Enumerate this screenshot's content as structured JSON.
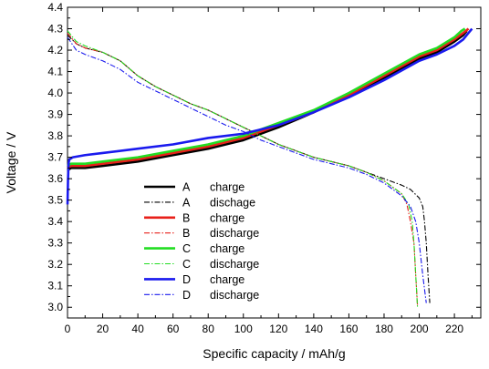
{
  "chart_data": {
    "type": "line",
    "title": "",
    "xlabel": "Specific capacity / mAh/g",
    "ylabel": "Voltage / V",
    "xlim": [
      0,
      235
    ],
    "ylim": [
      2.95,
      4.4
    ],
    "x_ticks": [
      0,
      20,
      40,
      60,
      80,
      100,
      120,
      140,
      160,
      180,
      200,
      220
    ],
    "y_ticks": [
      3.0,
      3.1,
      3.2,
      3.3,
      3.4,
      3.5,
      3.6,
      3.7,
      3.8,
      3.9,
      4.0,
      4.1,
      4.2,
      4.3,
      4.4
    ],
    "grid": false,
    "legend_position": "center-left",
    "series": [
      {
        "sample": "A",
        "mode": "charge",
        "color": "#000000",
        "style": "solid",
        "points": [
          [
            0,
            3.64
          ],
          [
            2,
            3.65
          ],
          [
            10,
            3.65
          ],
          [
            20,
            3.66
          ],
          [
            40,
            3.68
          ],
          [
            60,
            3.71
          ],
          [
            80,
            3.74
          ],
          [
            100,
            3.78
          ],
          [
            120,
            3.84
          ],
          [
            140,
            3.91
          ],
          [
            160,
            3.99
          ],
          [
            180,
            4.07
          ],
          [
            200,
            4.16
          ],
          [
            210,
            4.19
          ],
          [
            220,
            4.24
          ],
          [
            225,
            4.27
          ],
          [
            227,
            4.29
          ]
        ]
      },
      {
        "sample": "A",
        "mode": "dischage",
        "color": "#000000",
        "style": "dashdot",
        "points": [
          [
            0,
            4.27
          ],
          [
            5,
            4.23
          ],
          [
            10,
            4.21
          ],
          [
            20,
            4.19
          ],
          [
            30,
            4.15
          ],
          [
            40,
            4.08
          ],
          [
            50,
            4.03
          ],
          [
            60,
            3.99
          ],
          [
            70,
            3.95
          ],
          [
            80,
            3.92
          ],
          [
            90,
            3.88
          ],
          [
            100,
            3.84
          ],
          [
            110,
            3.8
          ],
          [
            120,
            3.76
          ],
          [
            130,
            3.73
          ],
          [
            140,
            3.7
          ],
          [
            150,
            3.68
          ],
          [
            160,
            3.66
          ],
          [
            170,
            3.63
          ],
          [
            180,
            3.6
          ],
          [
            190,
            3.57
          ],
          [
            195,
            3.55
          ],
          [
            200,
            3.51
          ],
          [
            202,
            3.47
          ],
          [
            203,
            3.4
          ],
          [
            204,
            3.3
          ],
          [
            205,
            3.15
          ],
          [
            206,
            3.02
          ]
        ]
      },
      {
        "sample": "B",
        "mode": "charge",
        "color": "#e8201a",
        "style": "solid",
        "points": [
          [
            0,
            3.65
          ],
          [
            2,
            3.66
          ],
          [
            10,
            3.66
          ],
          [
            20,
            3.67
          ],
          [
            40,
            3.69
          ],
          [
            60,
            3.72
          ],
          [
            80,
            3.75
          ],
          [
            100,
            3.79
          ],
          [
            120,
            3.85
          ],
          [
            140,
            3.91
          ],
          [
            160,
            3.99
          ],
          [
            180,
            4.08
          ],
          [
            200,
            4.17
          ],
          [
            210,
            4.2
          ],
          [
            220,
            4.25
          ],
          [
            225,
            4.28
          ],
          [
            228,
            4.3
          ]
        ]
      },
      {
        "sample": "B",
        "mode": "discharge",
        "color": "#e8201a",
        "style": "dashdot",
        "points": [
          [
            0,
            4.28
          ],
          [
            5,
            4.23
          ],
          [
            10,
            4.21
          ],
          [
            20,
            4.19
          ],
          [
            30,
            4.15
          ],
          [
            40,
            4.08
          ],
          [
            50,
            4.03
          ],
          [
            60,
            3.99
          ],
          [
            70,
            3.95
          ],
          [
            80,
            3.92
          ],
          [
            90,
            3.88
          ],
          [
            100,
            3.84
          ],
          [
            110,
            3.8
          ],
          [
            120,
            3.76
          ],
          [
            130,
            3.73
          ],
          [
            140,
            3.7
          ],
          [
            150,
            3.68
          ],
          [
            160,
            3.66
          ],
          [
            170,
            3.63
          ],
          [
            180,
            3.59
          ],
          [
            190,
            3.53
          ],
          [
            193,
            3.48
          ],
          [
            195,
            3.4
          ],
          [
            197,
            3.3
          ],
          [
            198,
            3.15
          ],
          [
            199,
            3.01
          ]
        ]
      },
      {
        "sample": "C",
        "mode": "charge",
        "color": "#22dd22",
        "style": "solid",
        "points": [
          [
            0,
            3.66
          ],
          [
            2,
            3.67
          ],
          [
            10,
            3.67
          ],
          [
            20,
            3.68
          ],
          [
            40,
            3.7
          ],
          [
            60,
            3.73
          ],
          [
            80,
            3.76
          ],
          [
            100,
            3.8
          ],
          [
            120,
            3.86
          ],
          [
            140,
            3.92
          ],
          [
            160,
            4.0
          ],
          [
            180,
            4.09
          ],
          [
            200,
            4.18
          ],
          [
            210,
            4.21
          ],
          [
            220,
            4.26
          ],
          [
            224,
            4.29
          ],
          [
            226,
            4.3
          ]
        ]
      },
      {
        "sample": "C",
        "mode": "discharge",
        "color": "#22dd22",
        "style": "dashdot",
        "points": [
          [
            0,
            4.29
          ],
          [
            5,
            4.24
          ],
          [
            10,
            4.22
          ],
          [
            20,
            4.19
          ],
          [
            30,
            4.15
          ],
          [
            40,
            4.08
          ],
          [
            50,
            4.03
          ],
          [
            60,
            3.99
          ],
          [
            70,
            3.95
          ],
          [
            80,
            3.92
          ],
          [
            90,
            3.88
          ],
          [
            100,
            3.84
          ],
          [
            110,
            3.8
          ],
          [
            120,
            3.76
          ],
          [
            130,
            3.73
          ],
          [
            140,
            3.7
          ],
          [
            150,
            3.68
          ],
          [
            160,
            3.66
          ],
          [
            170,
            3.63
          ],
          [
            180,
            3.59
          ],
          [
            190,
            3.53
          ],
          [
            194,
            3.48
          ],
          [
            196,
            3.4
          ],
          [
            197,
            3.3
          ],
          [
            198,
            3.15
          ],
          [
            199,
            3.0
          ]
        ]
      },
      {
        "sample": "D",
        "mode": "charge",
        "color": "#1a1aee",
        "style": "solid",
        "points": [
          [
            0,
            3.48
          ],
          [
            0.3,
            3.6
          ],
          [
            0.6,
            3.67
          ],
          [
            1,
            3.69
          ],
          [
            3,
            3.7
          ],
          [
            10,
            3.71
          ],
          [
            20,
            3.72
          ],
          [
            40,
            3.74
          ],
          [
            60,
            3.76
          ],
          [
            80,
            3.79
          ],
          [
            100,
            3.81
          ],
          [
            120,
            3.85
          ],
          [
            140,
            3.91
          ],
          [
            160,
            3.98
          ],
          [
            180,
            4.06
          ],
          [
            200,
            4.15
          ],
          [
            210,
            4.18
          ],
          [
            220,
            4.22
          ],
          [
            225,
            4.25
          ],
          [
            228,
            4.28
          ],
          [
            230,
            4.3
          ]
        ]
      },
      {
        "sample": "D",
        "mode": "discharge",
        "color": "#1a1aee",
        "style": "dashdot",
        "points": [
          [
            0,
            4.26
          ],
          [
            5,
            4.2
          ],
          [
            10,
            4.18
          ],
          [
            20,
            4.15
          ],
          [
            30,
            4.11
          ],
          [
            40,
            4.05
          ],
          [
            50,
            4.01
          ],
          [
            60,
            3.97
          ],
          [
            70,
            3.93
          ],
          [
            80,
            3.89
          ],
          [
            90,
            3.85
          ],
          [
            100,
            3.82
          ],
          [
            110,
            3.78
          ],
          [
            120,
            3.75
          ],
          [
            130,
            3.72
          ],
          [
            140,
            3.69
          ],
          [
            150,
            3.67
          ],
          [
            160,
            3.65
          ],
          [
            170,
            3.62
          ],
          [
            180,
            3.58
          ],
          [
            190,
            3.52
          ],
          [
            195,
            3.47
          ],
          [
            198,
            3.4
          ],
          [
            200,
            3.3
          ],
          [
            202,
            3.15
          ],
          [
            204,
            3.02
          ]
        ]
      }
    ],
    "legend": [
      {
        "sample": "A",
        "mode": "charge"
      },
      {
        "sample": "A",
        "mode": "dischage"
      },
      {
        "sample": "B",
        "mode": "charge"
      },
      {
        "sample": "B",
        "mode": "discharge"
      },
      {
        "sample": "C",
        "mode": "charge"
      },
      {
        "sample": "C",
        "mode": "discharge"
      },
      {
        "sample": "D",
        "mode": "charge"
      },
      {
        "sample": "D",
        "mode": "discharge"
      }
    ]
  }
}
